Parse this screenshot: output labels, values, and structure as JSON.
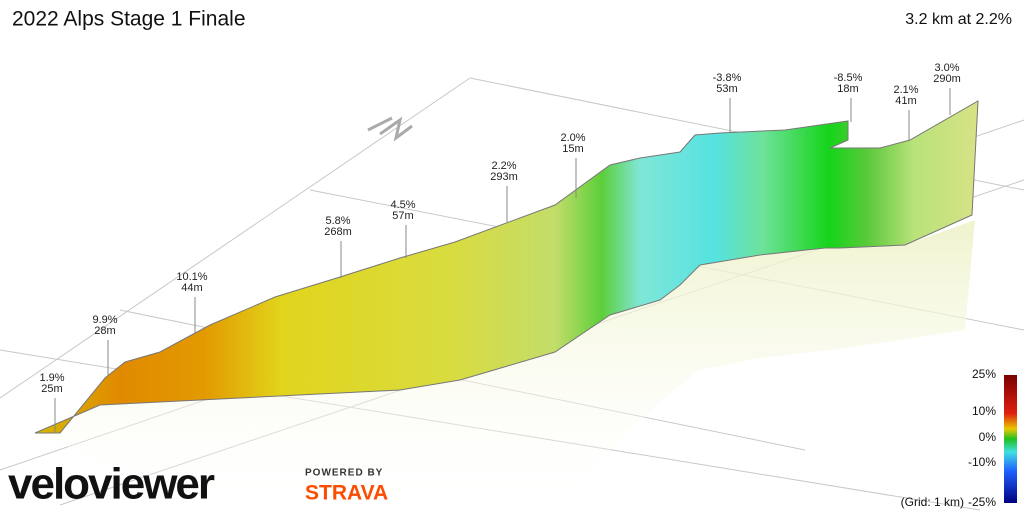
{
  "header": {
    "title": "2022 Alps Stage 1 Finale",
    "summary": "3.2 km at 2.2%"
  },
  "segments": [
    {
      "grade": "1.9%",
      "length": "25m"
    },
    {
      "grade": "9.9%",
      "length": "28m"
    },
    {
      "grade": "10.1%",
      "length": "44m"
    },
    {
      "grade": "5.8%",
      "length": "268m"
    },
    {
      "grade": "4.5%",
      "length": "57m"
    },
    {
      "grade": "2.2%",
      "length": "293m"
    },
    {
      "grade": "2.0%",
      "length": "15m"
    },
    {
      "grade": "-3.8%",
      "length": "53m"
    },
    {
      "grade": "-8.5%",
      "length": "18m"
    },
    {
      "grade": "2.1%",
      "length": "41m"
    },
    {
      "grade": "3.0%",
      "length": "290m"
    }
  ],
  "legend": {
    "labels": [
      "25%",
      "10%",
      "0%",
      "-10%",
      "-25%"
    ],
    "grid_note": "(Grid: 1 km)"
  },
  "branding": {
    "logo": "veloviewer",
    "powered_by": "POWERED BY",
    "partner": "STRAVA"
  }
}
